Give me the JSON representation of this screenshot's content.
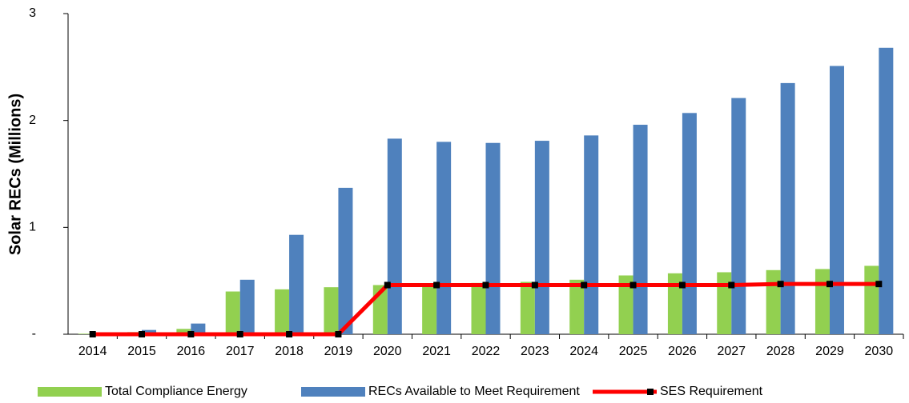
{
  "chart_data": {
    "type": "bar_line",
    "y_label": "Solar RECs (Millions)",
    "categories": [
      "2014",
      "2015",
      "2016",
      "2017",
      "2018",
      "2019",
      "2020",
      "2021",
      "2022",
      "2023",
      "2024",
      "2025",
      "2026",
      "2027",
      "2028",
      "2029",
      "2030"
    ],
    "series": [
      {
        "name": "Total Compliance Energy",
        "color": "#92d050",
        "type": "bar",
        "values": [
          0.005,
          0.02,
          0.05,
          0.4,
          0.42,
          0.44,
          0.46,
          0.47,
          0.48,
          0.49,
          0.51,
          0.55,
          0.57,
          0.58,
          0.6,
          0.61,
          0.64
        ]
      },
      {
        "name": "RECs Available to Meet Requirement",
        "color": "#4f81bd",
        "type": "bar",
        "values": [
          0.005,
          0.04,
          0.1,
          0.51,
          0.93,
          1.37,
          1.83,
          1.8,
          1.79,
          1.81,
          1.86,
          1.96,
          2.07,
          2.21,
          2.35,
          2.51,
          2.68
        ]
      },
      {
        "name": "SES Requirement",
        "color": "#ff0000",
        "marker_color": "#000000",
        "type": "line",
        "values": [
          0,
          0,
          0,
          0,
          0,
          0,
          0.46,
          0.46,
          0.46,
          0.46,
          0.46,
          0.46,
          0.46,
          0.46,
          0.47,
          0.47,
          0.47
        ]
      }
    ],
    "ylim": [
      0,
      3
    ],
    "yticks": [
      {
        "value": 0,
        "label": "-"
      },
      1,
      2,
      3
    ],
    "legend": "bottom"
  }
}
